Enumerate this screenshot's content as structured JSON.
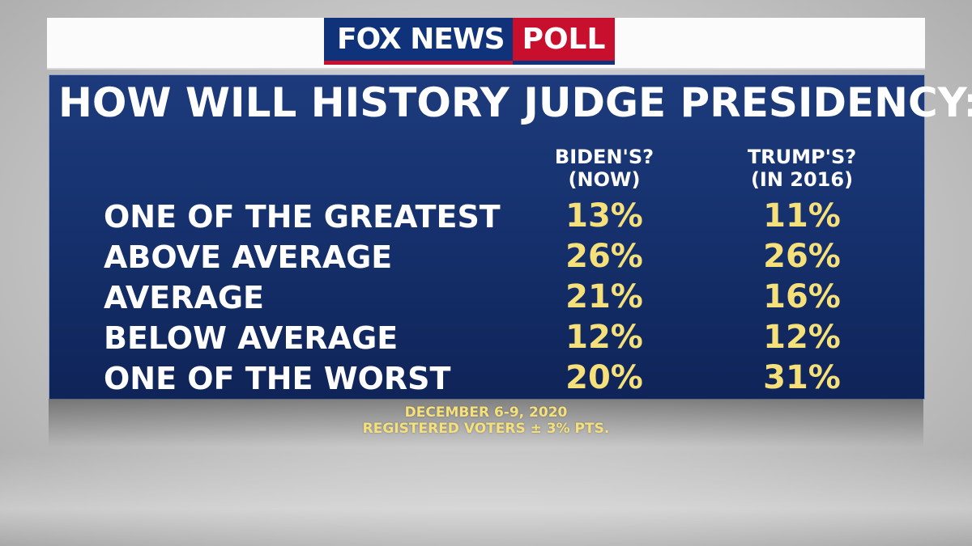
{
  "brand": {
    "fox_news": "FOX NEWS",
    "poll": "POLL"
  },
  "chart_data": {
    "type": "table",
    "title": "HOW WILL HISTORY JUDGE PRESIDENCY:",
    "columns": [
      {
        "line1": "BIDEN'S?",
        "line2": "(NOW)"
      },
      {
        "line1": "TRUMP'S?",
        "line2": "(IN 2016)"
      }
    ],
    "categories": [
      "ONE OF THE GREATEST",
      "ABOVE AVERAGE",
      "AVERAGE",
      "BELOW AVERAGE",
      "ONE OF THE WORST"
    ],
    "series": [
      {
        "name": "BIDEN'S? (NOW)",
        "values": [
          13,
          26,
          21,
          12,
          20
        ]
      },
      {
        "name": "TRUMP'S? (IN 2016)",
        "values": [
          11,
          26,
          16,
          12,
          31
        ]
      }
    ],
    "display": {
      "biden": [
        "13%",
        "26%",
        "21%",
        "12%",
        "20%"
      ],
      "trump": [
        "11%",
        "26%",
        "16%",
        "12%",
        "31%"
      ]
    }
  },
  "footer": {
    "date": "DECEMBER 6-9, 2020",
    "sample": "REGISTERED VOTERS ± 3% PTS."
  },
  "colors": {
    "panel": "#15306c",
    "value_text": "#f5e07a",
    "label_text": "#ffffff",
    "brand_blue": "#10327a",
    "brand_red": "#c8102e"
  }
}
